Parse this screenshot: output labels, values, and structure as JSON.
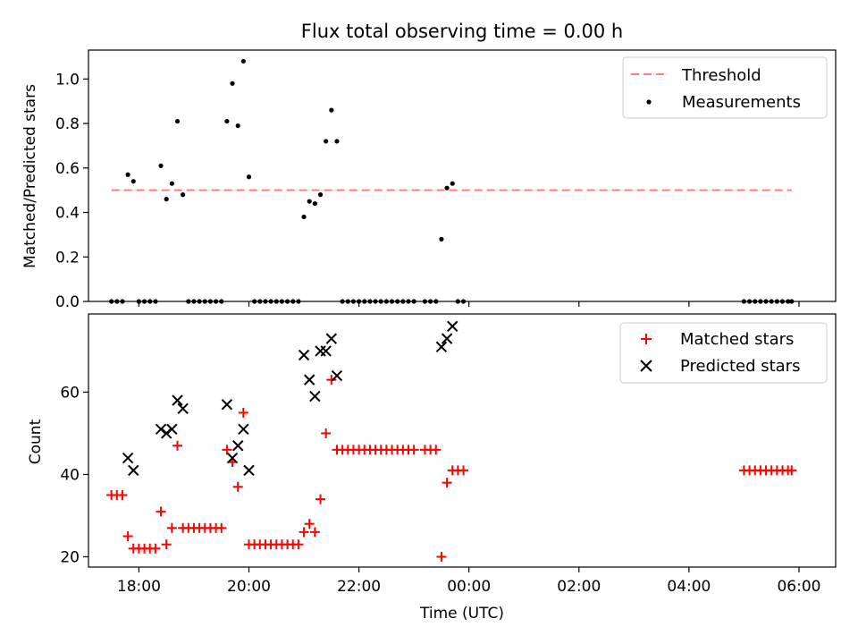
{
  "chart_data": [
    {
      "type": "scatter",
      "title": "Flux total observing time = 0.00 h",
      "xlabel": "",
      "ylabel": "Matched/Predicted stars",
      "xlim": [
        "17:05",
        "06:40"
      ],
      "ylim": [
        0,
        1.13
      ],
      "xticks": [
        "18:00",
        "20:00",
        "22:00",
        "00:00",
        "02:00",
        "04:00",
        "06:00"
      ],
      "yticks": [
        "0.0",
        "0.2",
        "0.4",
        "0.6",
        "0.8",
        "1.0"
      ],
      "legend_position": "upper-right",
      "threshold": {
        "name": "Threshold",
        "y": 0.5,
        "x_range": [
          "17:30",
          "05:52"
        ],
        "color": "#ff7f7f",
        "style": "dashed"
      },
      "series": [
        {
          "name": "Measurements",
          "color": "#000000",
          "marker": "dot",
          "points": [
            [
              "17:30",
              0
            ],
            [
              "17:36",
              0
            ],
            [
              "17:42",
              0
            ],
            [
              "17:48",
              0.57
            ],
            [
              "17:54",
              0.54
            ],
            [
              "18:00",
              0
            ],
            [
              "18:06",
              0
            ],
            [
              "18:12",
              0
            ],
            [
              "18:18",
              0
            ],
            [
              "18:24",
              0.61
            ],
            [
              "18:30",
              0.46
            ],
            [
              "18:36",
              0.53
            ],
            [
              "18:42",
              0.81
            ],
            [
              "18:48",
              0.48
            ],
            [
              "18:54",
              0
            ],
            [
              "19:00",
              0
            ],
            [
              "19:06",
              0
            ],
            [
              "19:12",
              0
            ],
            [
              "19:18",
              0
            ],
            [
              "19:24",
              0
            ],
            [
              "19:30",
              0
            ],
            [
              "19:36",
              0.81
            ],
            [
              "19:42",
              0.98
            ],
            [
              "19:48",
              0.79
            ],
            [
              "19:54",
              1.08
            ],
            [
              "20:00",
              0.56
            ],
            [
              "20:06",
              0
            ],
            [
              "20:12",
              0
            ],
            [
              "20:18",
              0
            ],
            [
              "20:24",
              0
            ],
            [
              "20:30",
              0
            ],
            [
              "20:36",
              0
            ],
            [
              "20:42",
              0
            ],
            [
              "20:48",
              0
            ],
            [
              "20:54",
              0
            ],
            [
              "21:00",
              0.38
            ],
            [
              "21:06",
              0.45
            ],
            [
              "21:12",
              0.44
            ],
            [
              "21:18",
              0.48
            ],
            [
              "21:24",
              0.72
            ],
            [
              "21:30",
              0.86
            ],
            [
              "21:36",
              0.72
            ],
            [
              "21:42",
              0
            ],
            [
              "21:48",
              0
            ],
            [
              "21:54",
              0
            ],
            [
              "22:00",
              0
            ],
            [
              "22:06",
              0
            ],
            [
              "22:12",
              0
            ],
            [
              "22:18",
              0
            ],
            [
              "22:24",
              0
            ],
            [
              "22:30",
              0
            ],
            [
              "22:36",
              0
            ],
            [
              "22:42",
              0
            ],
            [
              "22:48",
              0
            ],
            [
              "22:54",
              0
            ],
            [
              "23:00",
              0
            ],
            [
              "23:12",
              0
            ],
            [
              "23:18",
              0
            ],
            [
              "23:24",
              0
            ],
            [
              "23:30",
              0.28
            ],
            [
              "23:36",
              0.51
            ],
            [
              "23:42",
              0.53
            ],
            [
              "23:48",
              0
            ],
            [
              "23:54",
              0
            ],
            [
              "05:00",
              0
            ],
            [
              "05:06",
              0
            ],
            [
              "05:12",
              0
            ],
            [
              "05:18",
              0
            ],
            [
              "05:24",
              0
            ],
            [
              "05:30",
              0
            ],
            [
              "05:36",
              0
            ],
            [
              "05:42",
              0
            ],
            [
              "05:48",
              0
            ],
            [
              "05:52",
              0
            ]
          ]
        }
      ]
    },
    {
      "type": "scatter",
      "title": "",
      "xlabel": "Time (UTC)",
      "ylabel": "Count",
      "xlim": [
        "17:05",
        "06:40"
      ],
      "ylim": [
        17.5,
        79
      ],
      "xticks": [
        "18:00",
        "20:00",
        "22:00",
        "00:00",
        "02:00",
        "04:00",
        "06:00"
      ],
      "yticks": [
        "20",
        "40",
        "60"
      ],
      "legend_position": "upper-right",
      "series": [
        {
          "name": "Matched stars",
          "color": "#ff0000",
          "marker": "plus",
          "points": [
            [
              "17:30",
              35
            ],
            [
              "17:36",
              35
            ],
            [
              "17:42",
              35
            ],
            [
              "17:48",
              25
            ],
            [
              "17:54",
              22
            ],
            [
              "18:00",
              22
            ],
            [
              "18:06",
              22
            ],
            [
              "18:12",
              22
            ],
            [
              "18:18",
              22
            ],
            [
              "18:24",
              31
            ],
            [
              "18:30",
              23
            ],
            [
              "18:36",
              27
            ],
            [
              "18:42",
              47
            ],
            [
              "18:48",
              27
            ],
            [
              "18:54",
              27
            ],
            [
              "19:00",
              27
            ],
            [
              "19:06",
              27
            ],
            [
              "19:12",
              27
            ],
            [
              "19:18",
              27
            ],
            [
              "19:24",
              27
            ],
            [
              "19:30",
              27
            ],
            [
              "19:36",
              46
            ],
            [
              "19:42",
              43
            ],
            [
              "19:48",
              37
            ],
            [
              "19:54",
              55
            ],
            [
              "20:00",
              23
            ],
            [
              "20:06",
              23
            ],
            [
              "20:12",
              23
            ],
            [
              "20:18",
              23
            ],
            [
              "20:24",
              23
            ],
            [
              "20:30",
              23
            ],
            [
              "20:36",
              23
            ],
            [
              "20:42",
              23
            ],
            [
              "20:48",
              23
            ],
            [
              "20:54",
              23
            ],
            [
              "21:00",
              26
            ],
            [
              "21:06",
              28
            ],
            [
              "21:12",
              26
            ],
            [
              "21:18",
              34
            ],
            [
              "21:24",
              50
            ],
            [
              "21:30",
              63
            ],
            [
              "21:36",
              46
            ],
            [
              "21:42",
              46
            ],
            [
              "21:48",
              46
            ],
            [
              "21:54",
              46
            ],
            [
              "22:00",
              46
            ],
            [
              "22:06",
              46
            ],
            [
              "22:12",
              46
            ],
            [
              "22:18",
              46
            ],
            [
              "22:24",
              46
            ],
            [
              "22:30",
              46
            ],
            [
              "22:36",
              46
            ],
            [
              "22:42",
              46
            ],
            [
              "22:48",
              46
            ],
            [
              "22:54",
              46
            ],
            [
              "23:00",
              46
            ],
            [
              "23:12",
              46
            ],
            [
              "23:18",
              46
            ],
            [
              "23:24",
              46
            ],
            [
              "23:30",
              20
            ],
            [
              "23:36",
              38
            ],
            [
              "23:42",
              41
            ],
            [
              "23:48",
              41
            ],
            [
              "23:54",
              41
            ],
            [
              "05:00",
              41
            ],
            [
              "05:06",
              41
            ],
            [
              "05:12",
              41
            ],
            [
              "05:18",
              41
            ],
            [
              "05:24",
              41
            ],
            [
              "05:30",
              41
            ],
            [
              "05:36",
              41
            ],
            [
              "05:42",
              41
            ],
            [
              "05:48",
              41
            ],
            [
              "05:52",
              41
            ]
          ]
        },
        {
          "name": "Predicted stars",
          "color": "#000000",
          "marker": "x",
          "points": [
            [
              "17:48",
              44
            ],
            [
              "17:54",
              41
            ],
            [
              "18:24",
              51
            ],
            [
              "18:30",
              50
            ],
            [
              "18:36",
              51
            ],
            [
              "18:42",
              58
            ],
            [
              "18:48",
              56
            ],
            [
              "19:36",
              57
            ],
            [
              "19:42",
              44
            ],
            [
              "19:48",
              47
            ],
            [
              "19:54",
              51
            ],
            [
              "20:00",
              41
            ],
            [
              "21:00",
              69
            ],
            [
              "21:06",
              63
            ],
            [
              "21:12",
              59
            ],
            [
              "21:18",
              70
            ],
            [
              "21:24",
              70
            ],
            [
              "21:30",
              73
            ],
            [
              "21:36",
              64
            ],
            [
              "23:30",
              71
            ],
            [
              "23:36",
              73
            ],
            [
              "23:42",
              76
            ]
          ]
        }
      ]
    }
  ]
}
